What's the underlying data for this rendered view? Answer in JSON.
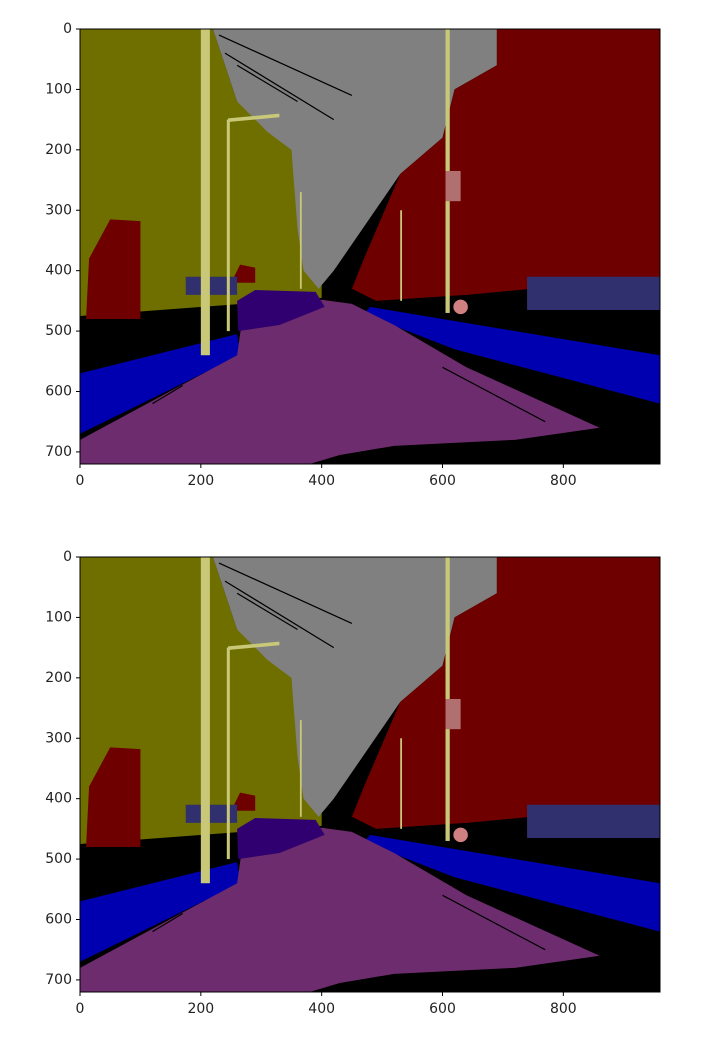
{
  "chart_data": [
    {
      "type": "image",
      "xlim": [
        0,
        960
      ],
      "ylim": [
        720,
        0
      ],
      "xticks": [
        0,
        200,
        400,
        600,
        800
      ],
      "yticks": [
        0,
        100,
        200,
        300,
        400,
        500,
        600,
        700
      ]
    },
    {
      "type": "image",
      "xlim": [
        0,
        960
      ],
      "ylim": [
        720,
        0
      ],
      "xticks": [
        0,
        200,
        400,
        600,
        800
      ],
      "yticks": [
        0,
        100,
        200,
        300,
        400,
        500,
        600,
        700
      ]
    }
  ]
}
